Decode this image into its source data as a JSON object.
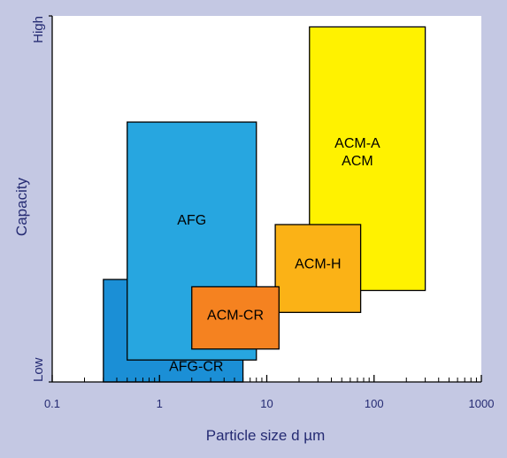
{
  "chart_data": {
    "type": "range-rectangles",
    "xlabel": "Particle size  d  µm",
    "ylabel": "Capacity",
    "x_scale": "log",
    "xlim": [
      0.1,
      1000
    ],
    "x_ticks": [
      {
        "value": 0.1,
        "label": "0.1"
      },
      {
        "value": 1,
        "label": "1"
      },
      {
        "value": 10,
        "label": "10"
      },
      {
        "value": 100,
        "label": "100"
      },
      {
        "value": 1000,
        "label": "1000"
      }
    ],
    "y_scale": "qualitative",
    "ylim": [
      0,
      1
    ],
    "y_ticks": [
      {
        "value": 0,
        "label": "Low"
      },
      {
        "value": 1,
        "label": "High"
      }
    ],
    "grid": false,
    "colors": {
      "frame_background": "#c4c8e3",
      "plot_background": "#ffffff",
      "axis_text": "#252b73",
      "axis_line": "#000000"
    },
    "series": [
      {
        "labels": [
          "AFG-CR"
        ],
        "x_range": [
          0.3,
          6
        ],
        "y_range": [
          0.0,
          0.28
        ],
        "color": "#1b8fd6",
        "label_x": 2.2,
        "label_y": 0.03
      },
      {
        "labels": [
          "AFG"
        ],
        "x_range": [
          0.5,
          8
        ],
        "y_range": [
          0.06,
          0.71
        ],
        "color": "#27a6e0",
        "label_x": 2.0,
        "label_y": 0.43
      },
      {
        "labels": [
          "ACM-A",
          "ACM"
        ],
        "x_range": [
          25,
          300
        ],
        "y_range": [
          0.25,
          0.97
        ],
        "color": "#fff200",
        "label_x": 70,
        "label_y": 0.64
      },
      {
        "labels": [
          "ACM-H"
        ],
        "x_range": [
          12,
          75
        ],
        "y_range": [
          0.19,
          0.43
        ],
        "color": "#fbb216",
        "label_x": 30,
        "label_y": 0.31
      },
      {
        "labels": [
          "ACM-CR"
        ],
        "x_range": [
          2,
          13
        ],
        "y_range": [
          0.09,
          0.26
        ],
        "color": "#f58220",
        "label_x": 5.1,
        "label_y": 0.17
      }
    ]
  }
}
